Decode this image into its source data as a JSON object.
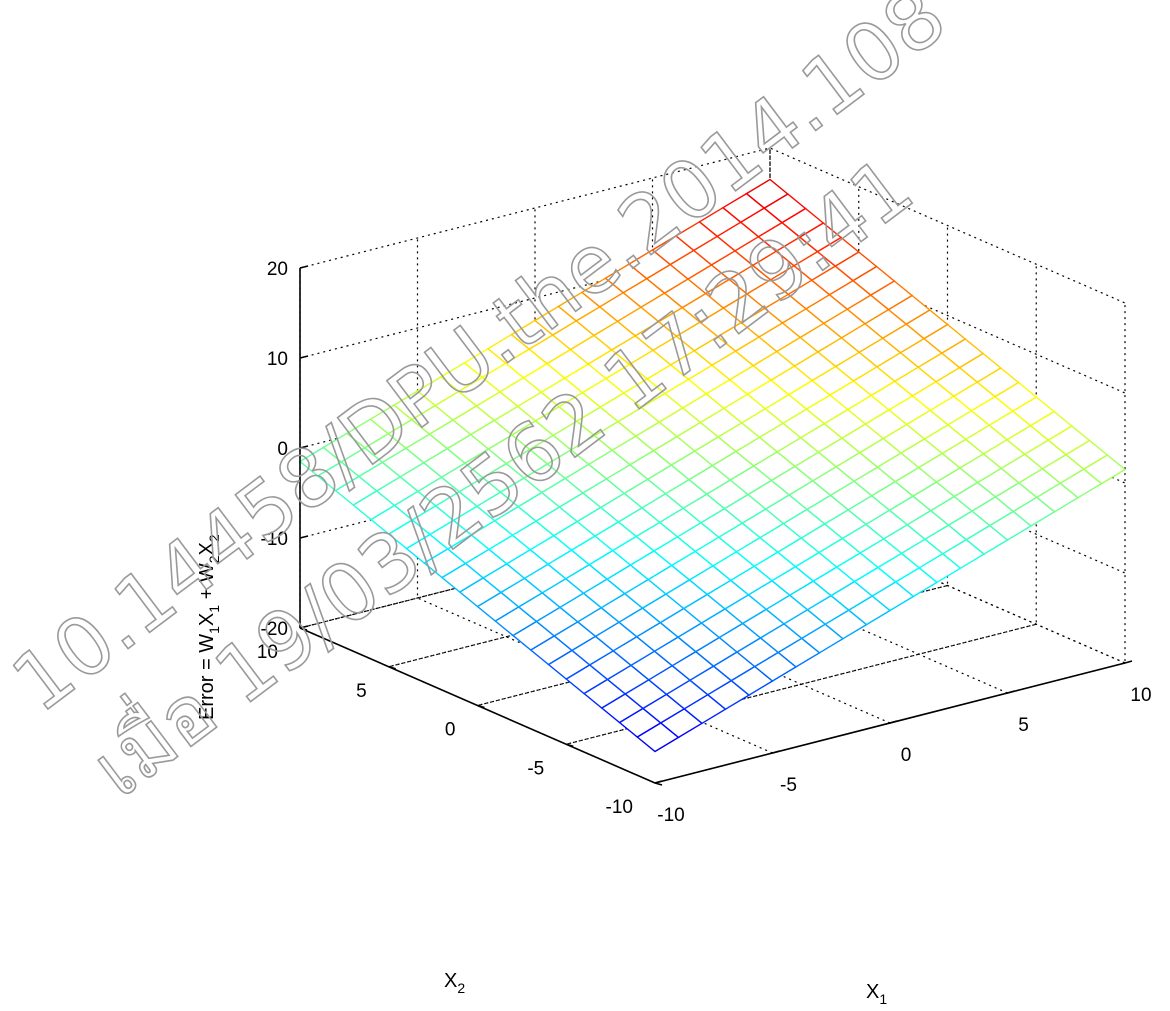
{
  "chart_data": {
    "type": "surface",
    "title": "",
    "xlabel": "X",
    "xlabel_sub": "1",
    "ylabel": "X",
    "ylabel_sub": "2",
    "zlabel": "Error = W1X1 + W2X2",
    "zlabel_parts": [
      {
        "t": "Error = W",
        "s": false
      },
      {
        "t": "1",
        "s": true
      },
      {
        "t": "X",
        "s": false
      },
      {
        "t": "1",
        "s": true
      },
      {
        "t": " + W",
        "s": false
      },
      {
        "t": "2",
        "s": true
      },
      {
        "t": "X",
        "s": false
      },
      {
        "t": "2",
        "s": true
      }
    ],
    "x_range": [
      -10,
      10
    ],
    "y_range": [
      -10,
      10
    ],
    "z_range": [
      -20,
      20
    ],
    "x_ticks": [
      -10,
      -5,
      0,
      5,
      10
    ],
    "y_ticks": [
      -10,
      -5,
      0,
      5,
      10
    ],
    "z_ticks": [
      -20,
      -10,
      0,
      10,
      20
    ],
    "weights": {
      "w1": 0.9,
      "w2": 0.75
    },
    "grid_steps": 20,
    "colormap": "jet",
    "grid": true
  },
  "watermark": {
    "line1": "10.14458/DPU.the.2014.108",
    "line2": "เมื่อ 19/03/2562 17:29:41"
  }
}
